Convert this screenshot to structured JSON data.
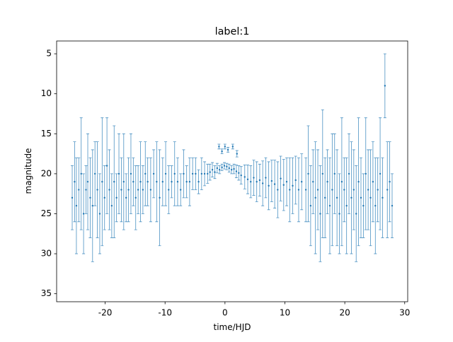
{
  "chart_data": {
    "type": "errorbar",
    "title": "label:1",
    "xlabel": "time/HJD",
    "ylabel": "magnitude",
    "color": "#1f77b4",
    "invert_y": true,
    "xlim": [
      -28.1,
      30.5
    ],
    "ylim": [
      3.4,
      36.0
    ],
    "xticks": [
      -20,
      -10,
      0,
      10,
      20,
      30
    ],
    "yticks": [
      5,
      10,
      15,
      20,
      25,
      30,
      35
    ],
    "x": [
      -25.5,
      -25.1,
      -24.8,
      -24.4,
      -24.0,
      -23.6,
      -23.2,
      -22.9,
      -22.5,
      -22.1,
      -21.7,
      -21.3,
      -20.9,
      -20.5,
      -20.1,
      -19.7,
      -19.3,
      -18.9,
      -18.5,
      -18.1,
      -17.7,
      -17.3,
      -16.9,
      -16.5,
      -16.1,
      -15.7,
      -15.3,
      -14.9,
      -14.5,
      -14.1,
      -13.7,
      -13.3,
      -12.9,
      -12.4,
      -11.9,
      -11.4,
      -10.9,
      -10.4,
      -9.9,
      -9.4,
      -8.9,
      -8.4,
      -7.9,
      -7.4,
      -6.9,
      -6.4,
      -5.9,
      -5.4,
      -4.9,
      -4.4,
      -3.9,
      -3.4,
      -2.9,
      -2.5,
      -2.1,
      -1.7,
      -1.3,
      -0.9,
      -0.5,
      -0.1,
      0.3,
      0.7,
      1.1,
      1.5,
      1.9,
      2.3,
      2.7,
      -1.0,
      -0.5,
      0.0,
      0.5,
      1.3,
      2.0,
      3.3,
      3.8,
      4.3,
      4.8,
      5.3,
      5.8,
      6.3,
      6.8,
      7.3,
      7.8,
      8.3,
      8.8,
      9.3,
      9.8,
      10.3,
      10.8,
      11.3,
      11.8,
      12.3,
      12.8,
      13.5,
      13.9,
      14.3,
      14.7,
      15.1,
      15.5,
      15.9,
      16.3,
      16.7,
      17.1,
      17.5,
      17.9,
      18.3,
      18.7,
      19.1,
      19.5,
      19.9,
      20.3,
      20.7,
      21.1,
      21.5,
      21.9,
      22.3,
      22.7,
      23.1,
      23.5,
      23.9,
      24.3,
      24.7,
      25.1,
      25.5,
      25.9,
      26.3,
      26.7,
      27.1,
      27.5,
      27.9
    ],
    "values": [
      23,
      21,
      24,
      22,
      20,
      25,
      22,
      21,
      23,
      24,
      20,
      22,
      25,
      21,
      23,
      19,
      22,
      24,
      21,
      23,
      20,
      22,
      21,
      23,
      22,
      20,
      21,
      23,
      22,
      21,
      22,
      20,
      21,
      22,
      20,
      21,
      23,
      21,
      20,
      22,
      21,
      20,
      21,
      22,
      20,
      21,
      21,
      20,
      20,
      21,
      20,
      20,
      20,
      19.8,
      19.5,
      19.8,
      19.3,
      19.5,
      19.2,
      19.0,
      19.1,
      19.3,
      19.5,
      19.4,
      19.7,
      19.9,
      20.2,
      16.6,
      17.2,
      16.6,
      17.0,
      16.6,
      17.5,
      20.4,
      20.7,
      21,
      20.5,
      21,
      20.8,
      21.2,
      20.5,
      21.5,
      20.9,
      21.3,
      22,
      20.6,
      21.4,
      21,
      22,
      21.5,
      20.8,
      22,
      21,
      22,
      20,
      24,
      21,
      23,
      22,
      25,
      20,
      23,
      21,
      24,
      22,
      20,
      23,
      25,
      21,
      22,
      24,
      20,
      23,
      22,
      25,
      21,
      23,
      24,
      20,
      22,
      23,
      21,
      24,
      22,
      20,
      23,
      9,
      22,
      21,
      24
    ],
    "errors": [
      4,
      5,
      6,
      4,
      7,
      5,
      3,
      6,
      5,
      7,
      4,
      6,
      5,
      8,
      4,
      6,
      5,
      4,
      7,
      3,
      5,
      4,
      6,
      3,
      4,
      5,
      3,
      4,
      3,
      5,
      3,
      4,
      3,
      4,
      3,
      5,
      6,
      3,
      4,
      3,
      2,
      4,
      3,
      2,
      3,
      2,
      3,
      2,
      2,
      1.5,
      2,
      1.5,
      1.2,
      1,
      0.9,
      0.8,
      0.6,
      0.5,
      0.4,
      0.4,
      0.4,
      0.5,
      0.5,
      0.6,
      0.8,
      0.9,
      1.1,
      0.3,
      0.3,
      0.3,
      0.3,
      0.3,
      0.4,
      1.5,
      1.8,
      2,
      2.2,
      2.5,
      2.0,
      2.8,
      2.5,
      3,
      2.6,
      3,
      3.5,
      2.8,
      3.2,
      3,
      4,
      3.5,
      3,
      4,
      3.5,
      4,
      6,
      5,
      4,
      7,
      5,
      6,
      8,
      5,
      4,
      6,
      7,
      5,
      6,
      5,
      8,
      4,
      6,
      5,
      7,
      5,
      6,
      8,
      5,
      4,
      7,
      5,
      6,
      5,
      6,
      4,
      7,
      5,
      4,
      6,
      5,
      4
    ]
  }
}
